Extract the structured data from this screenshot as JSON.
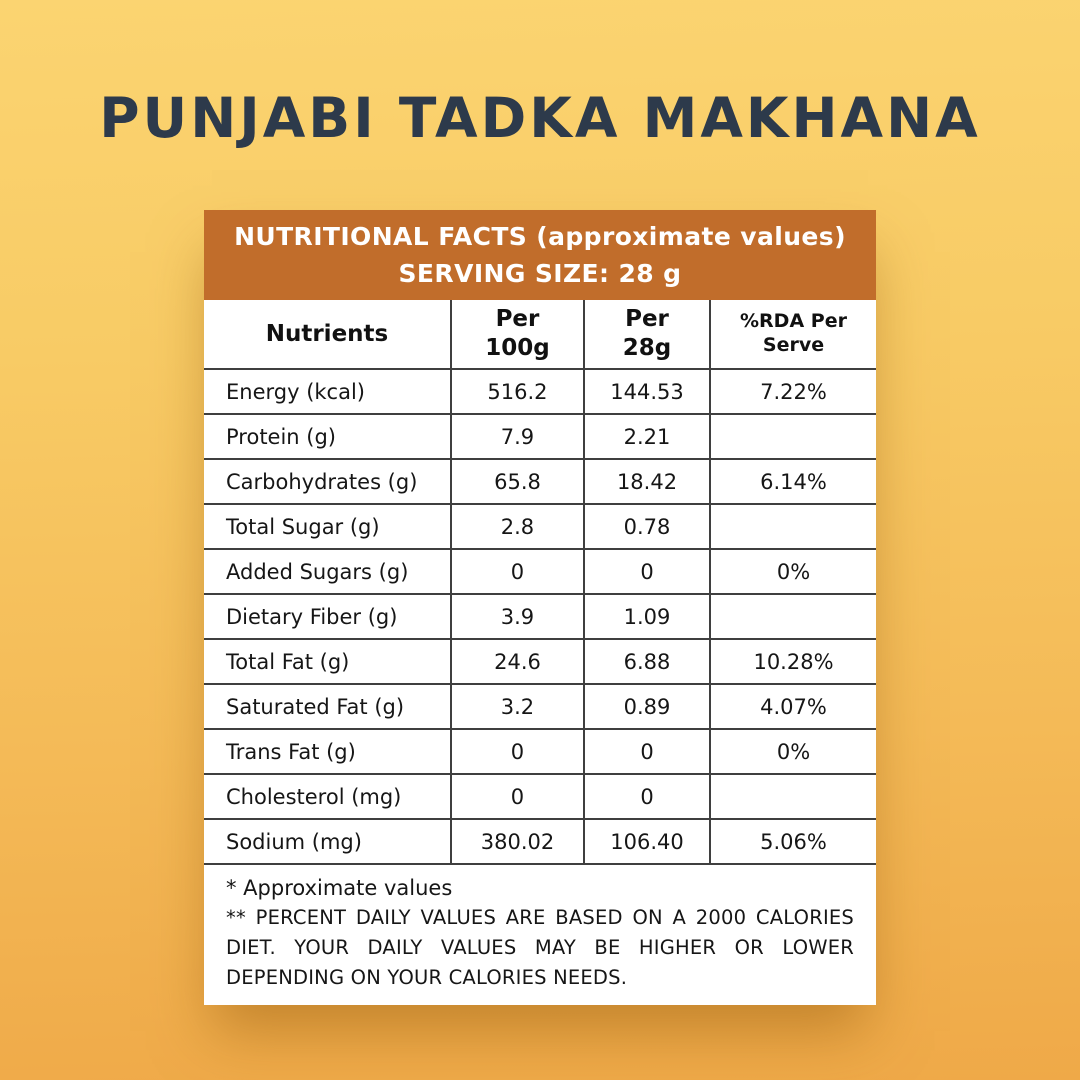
{
  "title": "PUNJABI TADKA MAKHANA",
  "panel": {
    "header_line1": "NUTRITIONAL FACTS (approximate values)",
    "header_line2": "SERVING SIZE: 28 g",
    "columns": {
      "nutrients": "Nutrients",
      "per100": "Per\n100g",
      "per28": "Per\n28g",
      "rda": "%RDA Per Serve"
    },
    "rows": [
      {
        "name": "Energy (kcal)",
        "per100": "516.2",
        "per28": "144.53",
        "rda": "7.22%"
      },
      {
        "name": "Protein (g)",
        "per100": "7.9",
        "per28": "2.21",
        "rda": ""
      },
      {
        "name": "Carbohydrates (g)",
        "per100": "65.8",
        "per28": "18.42",
        "rda": "6.14%"
      },
      {
        "name": "Total Sugar (g)",
        "per100": "2.8",
        "per28": "0.78",
        "rda": ""
      },
      {
        "name": "Added Sugars (g)",
        "per100": "0",
        "per28": "0",
        "rda": "0%"
      },
      {
        "name": "Dietary Fiber (g)",
        "per100": "3.9",
        "per28": "1.09",
        "rda": ""
      },
      {
        "name": "Total Fat (g)",
        "per100": "24.6",
        "per28": "6.88",
        "rda": "10.28%"
      },
      {
        "name": "Saturated Fat (g)",
        "per100": "3.2",
        "per28": "0.89",
        "rda": "4.07%"
      },
      {
        "name": "Trans Fat (g)",
        "per100": "0",
        "per28": "0",
        "rda": "0%"
      },
      {
        "name": "Cholesterol (mg)",
        "per100": "0",
        "per28": "0",
        "rda": ""
      },
      {
        "name": "Sodium (mg)",
        "per100": "380.02",
        "per28": "106.40",
        "rda": "5.06%"
      }
    ],
    "notes": {
      "approx": "* Approximate values",
      "daily": "** PERCENT DAILY VALUES ARE BASED ON A 2000 CALORIES DIET. YOUR DAILY VALUES MAY BE HIGHER OR LOWER DEPENDING ON YOUR CALORIES NEEDS."
    }
  },
  "colors": {
    "header_orange": "#c16d2b",
    "title_navy": "#2d3a4b",
    "background_top": "#fbd471",
    "background_bottom": "#efa948",
    "table_line": "#3f3f3f",
    "card_white": "#ffffff"
  }
}
